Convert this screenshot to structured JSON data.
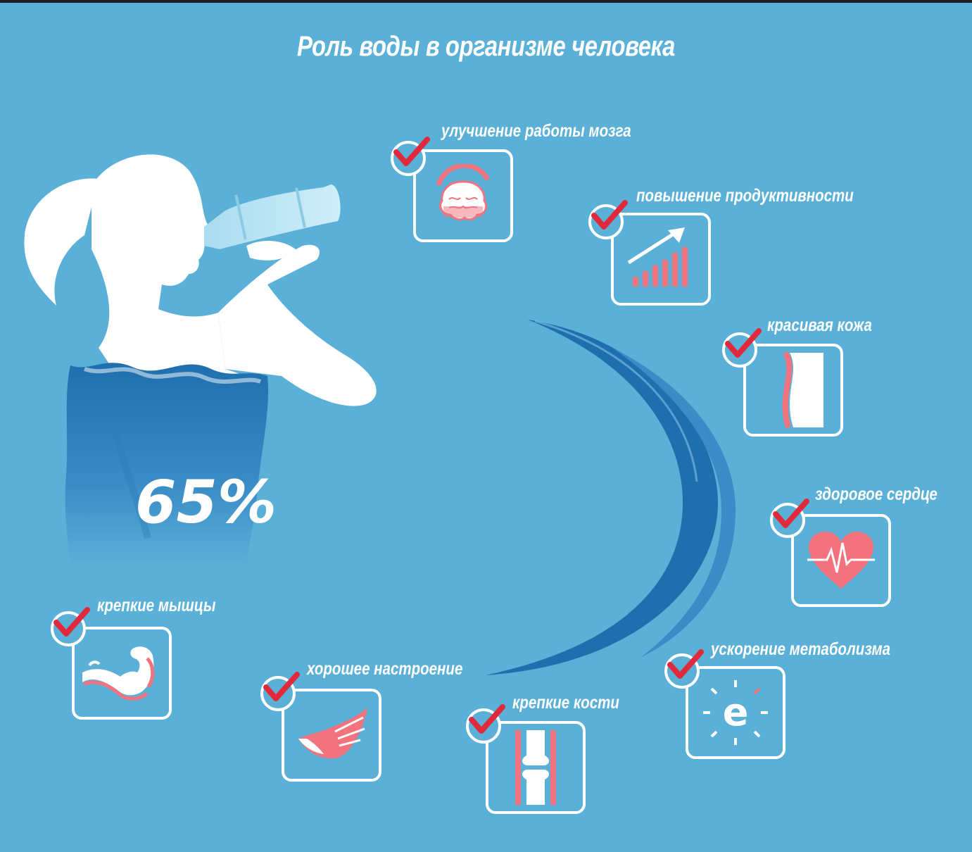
{
  "title": "Роль воды в организме человека",
  "body_water_percent": "65%",
  "benefits": [
    {
      "label": "улучшение работы мозга",
      "icon": "brain-icon"
    },
    {
      "label": "повышение продуктивности",
      "icon": "growth-chart-icon"
    },
    {
      "label": "красивая кожа",
      "icon": "skin-icon"
    },
    {
      "label": "здоровое сердце",
      "icon": "heart-icon"
    },
    {
      "label": "ускорение метаболизма",
      "icon": "metabolism-icon"
    },
    {
      "label": "крепкие кости",
      "icon": "bone-joint-icon"
    },
    {
      "label": "хорошее настроение",
      "icon": "wing-icon"
    },
    {
      "label": "крепкие мышцы",
      "icon": "muscle-arm-icon"
    }
  ],
  "colors": {
    "background": "#5bb0d8",
    "water": "#1f77b4",
    "accent": "#e02a3b",
    "icon_pink": "#f2737e",
    "white": "#ffffff"
  }
}
